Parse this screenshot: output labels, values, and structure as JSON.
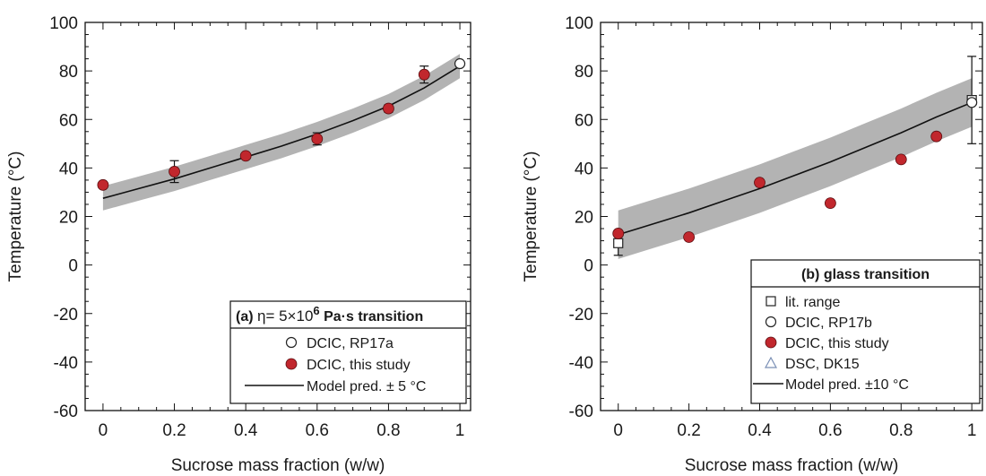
{
  "chart_data": [
    {
      "type": "scatter",
      "xlabel": "Sucrose mass fraction (w/w)",
      "ylabel": "Temperature (°C)",
      "xlim": [
        -0.05,
        1.03
      ],
      "ylim": [
        -60,
        100
      ],
      "xticks": [
        "0",
        "0.2",
        "0.4",
        "0.6",
        "0.8",
        "1"
      ],
      "yticks": [
        "-60",
        "-40",
        "-20",
        "0",
        "20",
        "40",
        "60",
        "80",
        "100"
      ],
      "legend": {
        "position": "bottom-right",
        "prefix": "(a)",
        "title_main": "η= 5×10",
        "title_sup": "6",
        "title_rest": " Pa·s transition",
        "entries": [
          "DCIC, RP17a",
          "DCIC, this study",
          "Model pred. ± 5 °C"
        ]
      },
      "series": [
        {
          "name": "DCIC, RP17a",
          "marker": "open-circle",
          "color": "#ffffff",
          "points": [
            [
              1.0,
              83
            ]
          ]
        },
        {
          "name": "DCIC, this study",
          "marker": "filled-circle",
          "color": "#c1272d",
          "points": [
            [
              0,
              33
            ],
            [
              0.2,
              38.5
            ],
            [
              0.4,
              45
            ],
            [
              0.6,
              52
            ],
            [
              0.8,
              64.5
            ],
            [
              0.9,
              78.5
            ]
          ],
          "errors": [
            0,
            4.5,
            0,
            2.5,
            1.5,
            3.5
          ]
        }
      ],
      "model": {
        "name": "Model pred. ± 5 °C",
        "band": 5,
        "x": [
          0,
          0.1,
          0.2,
          0.3,
          0.4,
          0.5,
          0.6,
          0.7,
          0.8,
          0.9,
          1.0
        ],
        "y": [
          27.5,
          31.5,
          35.5,
          40,
          44.5,
          49,
          54,
          59.5,
          65.5,
          73,
          82
        ]
      },
      "band_color": "#b3b3b3"
    },
    {
      "type": "scatter",
      "xlabel": "Sucrose mass fraction (w/w)",
      "ylabel": "Temperature (°C)",
      "xlim": [
        -0.05,
        1.03
      ],
      "ylim": [
        -60,
        100
      ],
      "xticks": [
        "0",
        "0.2",
        "0.4",
        "0.6",
        "0.8",
        "1"
      ],
      "yticks": [
        "-60",
        "-40",
        "-20",
        "0",
        "20",
        "40",
        "60",
        "80",
        "100"
      ],
      "legend": {
        "position": "bottom-right",
        "title": "(b) glass transition",
        "entries": [
          "lit. range",
          "DCIC, RP17b",
          "DCIC, this study",
          "DSC, DK15",
          "Model pred. ±10 °C"
        ]
      },
      "series": [
        {
          "name": "lit. range",
          "marker": "open-square",
          "color": "#ffffff",
          "points": [
            [
              0,
              9
            ],
            [
              1.0,
              68
            ]
          ],
          "errors": [
            5,
            18
          ]
        },
        {
          "name": "DCIC, RP17b",
          "marker": "open-circle",
          "color": "#ffffff",
          "points": [
            [
              1.0,
              67
            ]
          ]
        },
        {
          "name": "DCIC, this study",
          "marker": "filled-circle",
          "color": "#c1272d",
          "points": [
            [
              0,
              13
            ],
            [
              0.2,
              11.5
            ],
            [
              0.4,
              34
            ],
            [
              0.6,
              25.5
            ],
            [
              0.8,
              43.5
            ],
            [
              0.9,
              53
            ]
          ]
        },
        {
          "name": "DSC, DK15",
          "marker": "open-triangle",
          "color": "#7a8fb5",
          "points": []
        }
      ],
      "model": {
        "name": "Model pred. ±10 °C",
        "band": 10,
        "x": [
          0,
          0.1,
          0.2,
          0.3,
          0.4,
          0.5,
          0.6,
          0.7,
          0.8,
          0.9,
          1.0
        ],
        "y": [
          12.5,
          17,
          21.5,
          26.5,
          31.5,
          37,
          42.5,
          48.5,
          54.5,
          61,
          67
        ]
      },
      "band_color": "#b3b3b3"
    }
  ]
}
